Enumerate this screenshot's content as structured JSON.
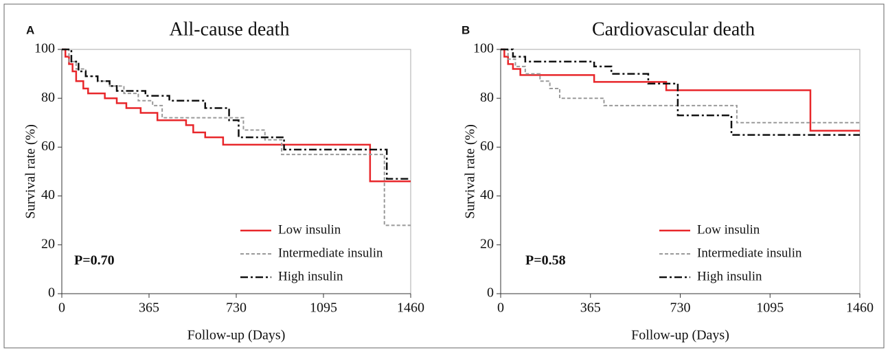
{
  "chart_data": [
    {
      "type": "step",
      "panel_label": "A",
      "title": "All-cause death",
      "x_label": "Follow-up (Days)",
      "y_label": "Survival rate (%)",
      "annotation": "P=0.70",
      "xlim": [
        0,
        1460
      ],
      "ylim": [
        0,
        100
      ],
      "xticks": [
        0,
        365,
        730,
        1095,
        1460
      ],
      "yticks": [
        0,
        20,
        40,
        60,
        80,
        100
      ],
      "series": [
        {
          "name": "Low insulin",
          "color": "#e8262a",
          "style": "solid",
          "x": [
            0,
            15,
            30,
            45,
            60,
            90,
            110,
            180,
            230,
            270,
            330,
            400,
            520,
            550,
            600,
            675,
            1290,
            1460
          ],
          "values": [
            100,
            97,
            94,
            91,
            87,
            84,
            82,
            80,
            78,
            76,
            74,
            71,
            69,
            66,
            64,
            61,
            46,
            46
          ]
        },
        {
          "name": "Intermediate insulin",
          "color": "#999999",
          "style": "dashed",
          "x": [
            0,
            30,
            60,
            100,
            150,
            200,
            260,
            320,
            380,
            420,
            760,
            850,
            920,
            1350,
            1460
          ],
          "values": [
            100,
            95,
            92,
            89,
            87,
            85,
            82,
            79,
            77,
            72,
            67,
            63,
            57,
            28,
            28
          ]
        },
        {
          "name": "High insulin",
          "color": "#111111",
          "style": "dashdot",
          "x": [
            0,
            40,
            70,
            100,
            150,
            200,
            230,
            350,
            450,
            600,
            700,
            740,
            930,
            1360,
            1460
          ],
          "values": [
            100,
            95,
            91,
            89,
            87,
            85,
            83,
            81,
            79,
            76,
            71,
            64,
            59,
            47,
            47
          ]
        }
      ]
    },
    {
      "type": "step",
      "panel_label": "B",
      "title": "Cardiovascular death",
      "x_label": "Follow-up (Days)",
      "y_label": "Survival rate (%)",
      "annotation": "P=0.58",
      "xlim": [
        0,
        1460
      ],
      "ylim": [
        0,
        100
      ],
      "xticks": [
        0,
        365,
        730,
        1095,
        1460
      ],
      "yticks": [
        0,
        20,
        40,
        60,
        80,
        100
      ],
      "series": [
        {
          "name": "Low insulin",
          "color": "#e8262a",
          "style": "solid",
          "x": [
            0,
            15,
            30,
            50,
            80,
            380,
            673,
            1259,
            1460
          ],
          "values": [
            100,
            97,
            94,
            92,
            89.5,
            86.7,
            83.3,
            66.7,
            66.7
          ]
        },
        {
          "name": "Intermediate insulin",
          "color": "#999999",
          "style": "dashed",
          "x": [
            0,
            30,
            60,
            100,
            160,
            200,
            240,
            420,
            960,
            1460
          ],
          "values": [
            100,
            96,
            93,
            90,
            87,
            84,
            80,
            77,
            70,
            70
          ]
        },
        {
          "name": "High insulin",
          "color": "#111111",
          "style": "dashdot",
          "x": [
            0,
            50,
            100,
            380,
            450,
            600,
            720,
            938,
            1460
          ],
          "values": [
            100,
            97,
            95,
            93,
            90,
            86,
            73,
            65,
            65
          ]
        }
      ]
    }
  ]
}
